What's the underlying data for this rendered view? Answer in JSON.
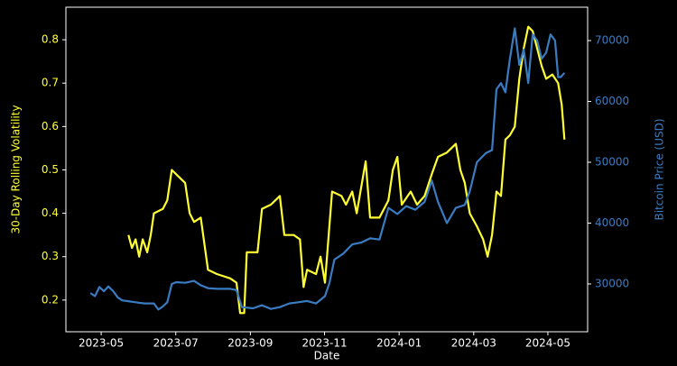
{
  "chart_data": {
    "type": "line",
    "x_label": "Date",
    "y_label": "30-Day Rolling Volatility",
    "y2_label": "Bitcoin Price (USD)",
    "xlim": [
      2023.254,
      2024.422
    ],
    "xticks": [
      {
        "value": 2023.333,
        "label": "2023-05"
      },
      {
        "value": 2023.5,
        "label": "2023-07"
      },
      {
        "value": 2023.667,
        "label": "2023-09"
      },
      {
        "value": 2023.833,
        "label": "2023-11"
      },
      {
        "value": 2024.0,
        "label": "2024-01"
      },
      {
        "value": 2024.167,
        "label": "2024-03"
      },
      {
        "value": 2024.333,
        "label": "2024-05"
      }
    ],
    "ylim": [
      0.127,
      0.875
    ],
    "yticks": [
      0.2,
      0.3,
      0.4,
      0.5,
      0.6,
      0.7,
      0.8
    ],
    "y2lim": [
      22150,
      75480
    ],
    "y2ticks": [
      30000,
      40000,
      50000,
      60000,
      70000
    ],
    "series": [
      {
        "color": "#ffff33",
        "axis": "y",
        "x": [
          2023.394,
          2023.402,
          2023.41,
          2023.418,
          2023.426,
          2023.436,
          2023.444,
          2023.451,
          2023.471,
          2023.481,
          2023.491,
          2023.501,
          2023.521,
          2023.531,
          2023.541,
          2023.556,
          2023.572,
          2023.592,
          2023.622,
          2023.636,
          2023.644,
          2023.653,
          2023.659,
          2023.683,
          2023.693,
          2023.713,
          2023.733,
          2023.743,
          2023.764,
          2023.778,
          2023.786,
          2023.794,
          2023.814,
          2023.824,
          2023.834,
          2023.85,
          2023.871,
          2023.881,
          2023.895,
          2023.905,
          2023.925,
          2023.935,
          2023.956,
          2023.976,
          2023.986,
          2023.996,
          2024.006,
          2024.026,
          2024.04,
          2024.057,
          2024.073,
          2024.087,
          2024.107,
          2024.127,
          2024.137,
          2024.147,
          2024.158,
          2024.174,
          2024.188,
          2024.198,
          2024.208,
          2024.218,
          2024.228,
          2024.238,
          2024.248,
          2024.259,
          2024.269,
          2024.279,
          2024.289,
          2024.299,
          2024.309,
          2024.319,
          2024.329,
          2024.343,
          2024.356,
          2024.364,
          2024.37
        ],
        "values": [
          0.35,
          0.32,
          0.34,
          0.3,
          0.34,
          0.31,
          0.35,
          0.4,
          0.41,
          0.43,
          0.5,
          0.49,
          0.47,
          0.4,
          0.38,
          0.39,
          0.27,
          0.26,
          0.25,
          0.24,
          0.17,
          0.17,
          0.31,
          0.31,
          0.41,
          0.42,
          0.44,
          0.35,
          0.35,
          0.34,
          0.23,
          0.27,
          0.26,
          0.3,
          0.24,
          0.45,
          0.44,
          0.42,
          0.45,
          0.4,
          0.52,
          0.39,
          0.39,
          0.43,
          0.5,
          0.53,
          0.42,
          0.45,
          0.42,
          0.44,
          0.49,
          0.53,
          0.54,
          0.56,
          0.5,
          0.47,
          0.4,
          0.37,
          0.34,
          0.3,
          0.35,
          0.45,
          0.44,
          0.57,
          0.58,
          0.6,
          0.71,
          0.78,
          0.83,
          0.82,
          0.78,
          0.74,
          0.71,
          0.72,
          0.7,
          0.65,
          0.57
        ]
      },
      {
        "color": "#3a7cc2",
        "axis": "y2",
        "x": [
          2023.309,
          2023.319,
          2023.329,
          2023.339,
          2023.349,
          2023.36,
          2023.37,
          2023.38,
          2023.39,
          2023.41,
          2023.43,
          2023.451,
          2023.461,
          2023.471,
          2023.481,
          2023.491,
          2023.501,
          2023.521,
          2023.541,
          2023.556,
          2023.572,
          2023.592,
          2023.622,
          2023.636,
          2023.648,
          2023.673,
          2023.693,
          2023.713,
          2023.733,
          2023.754,
          2023.774,
          2023.794,
          2023.814,
          2023.834,
          2023.844,
          2023.855,
          2023.875,
          2023.895,
          2023.915,
          2023.935,
          2023.956,
          2023.976,
          2023.996,
          2024.016,
          2024.036,
          2024.057,
          2024.073,
          2024.087,
          2024.107,
          2024.127,
          2024.147,
          2024.158,
          2024.174,
          2024.194,
          2024.208,
          2024.218,
          2024.228,
          2024.238,
          2024.248,
          2024.259,
          2024.269,
          2024.279,
          2024.289,
          2024.299,
          2024.309,
          2024.319,
          2024.329,
          2024.339,
          2024.349,
          2024.356,
          2024.362,
          2024.37
        ],
        "values": [
          28500,
          28000,
          29500,
          28800,
          29600,
          28800,
          27800,
          27300,
          27200,
          27000,
          26800,
          26800,
          25800,
          26300,
          27000,
          30000,
          30300,
          30200,
          30500,
          29800,
          29300,
          29200,
          29200,
          29000,
          26200,
          26000,
          26500,
          25900,
          26200,
          26800,
          27000,
          27200,
          26800,
          28000,
          30200,
          34000,
          35000,
          36500,
          36800,
          37500,
          37300,
          42500,
          41500,
          42800,
          42200,
          43500,
          47000,
          43500,
          40000,
          42500,
          43000,
          45200,
          50000,
          51500,
          52000,
          62000,
          63000,
          61500,
          67000,
          72000,
          66000,
          68500,
          63000,
          71000,
          70000,
          67000,
          68000,
          71000,
          70000,
          64000,
          64000,
          64700
        ]
      }
    ]
  }
}
